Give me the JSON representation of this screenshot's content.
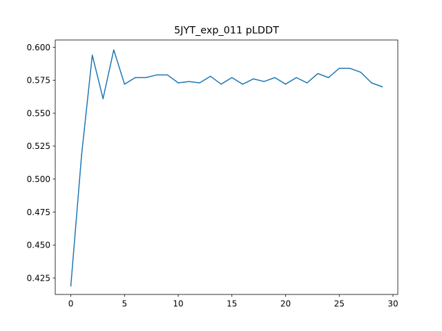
{
  "chart_data": {
    "type": "line",
    "title": "5JYT_exp_011 pLDDT",
    "xlabel": "",
    "ylabel": "",
    "xlim": [
      -1.45,
      30.45
    ],
    "ylim": [
      0.4125,
      0.6055
    ],
    "xticks": [
      0,
      5,
      10,
      15,
      20,
      25,
      30
    ],
    "xtick_labels": [
      "0",
      "5",
      "10",
      "15",
      "20",
      "25",
      "30"
    ],
    "yticks": [
      0.425,
      0.45,
      0.475,
      0.5,
      0.525,
      0.55,
      0.575,
      0.6
    ],
    "ytick_labels": [
      "0.425",
      "0.450",
      "0.475",
      "0.500",
      "0.525",
      "0.550",
      "0.575",
      "0.600"
    ],
    "grid": false,
    "series": [
      {
        "color": "#1f77b4",
        "x": [
          0,
          1,
          2,
          3,
          4,
          5,
          6,
          7,
          8,
          9,
          10,
          11,
          12,
          13,
          14,
          15,
          16,
          17,
          18,
          19,
          20,
          21,
          22,
          23,
          24,
          25,
          26,
          27,
          28,
          29
        ],
        "values": [
          0.419,
          0.518,
          0.594,
          0.561,
          0.598,
          0.572,
          0.577,
          0.577,
          0.579,
          0.579,
          0.573,
          0.574,
          0.573,
          0.578,
          0.572,
          0.577,
          0.572,
          0.576,
          0.574,
          0.577,
          0.572,
          0.577,
          0.573,
          0.58,
          0.577,
          0.584,
          0.584,
          0.581,
          0.573,
          0.57
        ]
      }
    ]
  }
}
